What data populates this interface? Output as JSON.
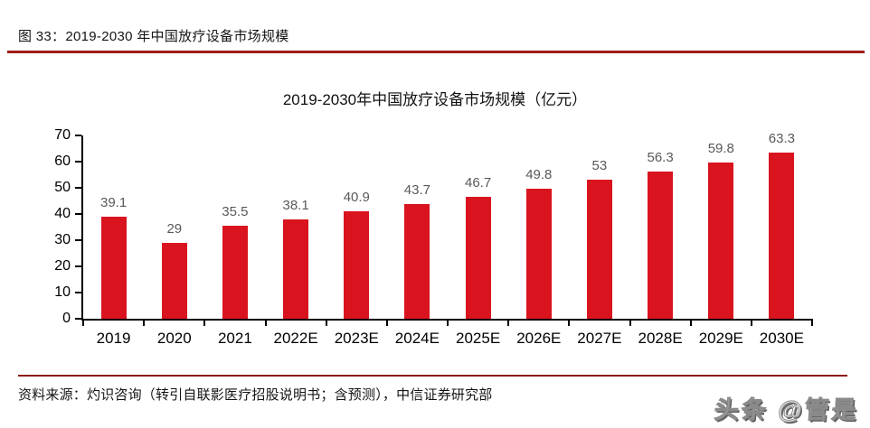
{
  "figure": {
    "caption": "图 33：2019-2030 年中国放疗设备市场规模",
    "source": "资料来源：灼识咨询（转引自联影医疗招股说明书；含预测），中信证券研究部",
    "watermark": "头条 @管是"
  },
  "colors": {
    "bar": "#D9141F",
    "caption_rule": "#A01C1C",
    "source_rule": "#8E1418",
    "value_label": "#595959",
    "axis": "#000000",
    "tick_label": "#000000"
  },
  "chart_data": {
    "type": "bar",
    "title": "2019-2030年中国放疗设备市场规模（亿元）",
    "unit": "亿元",
    "categories": [
      "2019",
      "2020",
      "2021",
      "2022E",
      "2023E",
      "2024E",
      "2025E",
      "2026E",
      "2027E",
      "2028E",
      "2029E",
      "2030E"
    ],
    "values": [
      39.1,
      29,
      35.5,
      38.1,
      40.9,
      43.7,
      46.7,
      49.8,
      53,
      56.3,
      59.8,
      63.3
    ],
    "value_labels": [
      "39.1",
      "29",
      "35.5",
      "38.1",
      "40.9",
      "43.7",
      "46.7",
      "49.8",
      "53",
      "56.3",
      "59.8",
      "63.3"
    ],
    "xlabel": "",
    "ylabel": "",
    "ylim": [
      0,
      70
    ],
    "yticks": [
      0,
      10,
      20,
      30,
      40,
      50,
      60,
      70
    ],
    "grid": false,
    "legend": "none",
    "bar_color": "#D9141F"
  }
}
